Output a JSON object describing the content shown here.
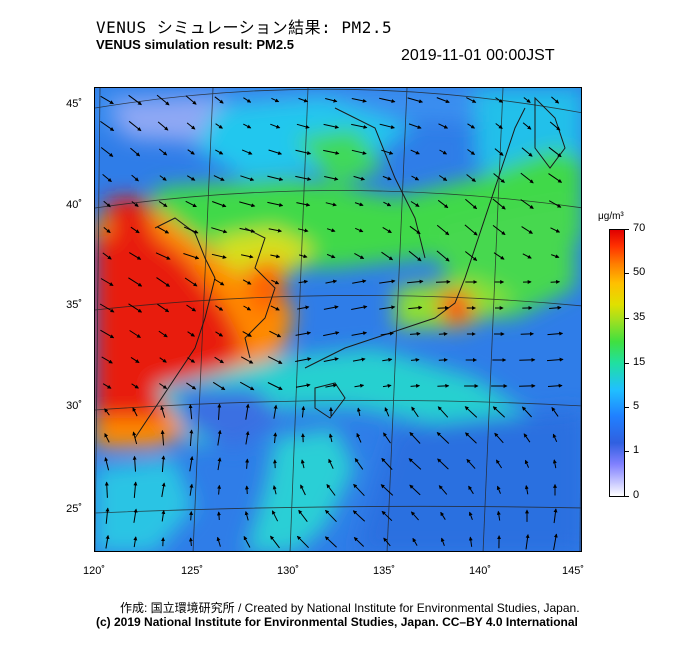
{
  "header": {
    "title_ja": "VENUS シミュレーション結果: PM2.5",
    "title_en": "VENUS simulation result: PM2.5",
    "timestamp": "2019-11-01 00:00JST"
  },
  "map": {
    "lat_labels": [
      "45˚",
      "40˚",
      "35˚",
      "30˚",
      "25˚"
    ],
    "lon_labels": [
      "120˚",
      "125˚",
      "130˚",
      "135˚",
      "140˚",
      "145˚"
    ],
    "colors": {
      "sea_low": "#2f7de8",
      "sea_mid": "#25c6ee",
      "green": "#3fd94a",
      "yellow": "#d6e01a",
      "orange": "#ff8a00",
      "red": "#e81a0a",
      "coast": "#1a1a1a"
    }
  },
  "colorbar": {
    "unit": "μg/m³",
    "ticks": [
      "70",
      "50",
      "35",
      "15",
      "5",
      "1",
      "0"
    ]
  },
  "footer": {
    "credit_ja": "作成: 国立環境研究所 / Created by National Institute for Environmental Studies, Japan.",
    "credit_en": "(c) 2019 National Institute for Environmental Studies, Japan. CC–BY 4.0 International"
  }
}
